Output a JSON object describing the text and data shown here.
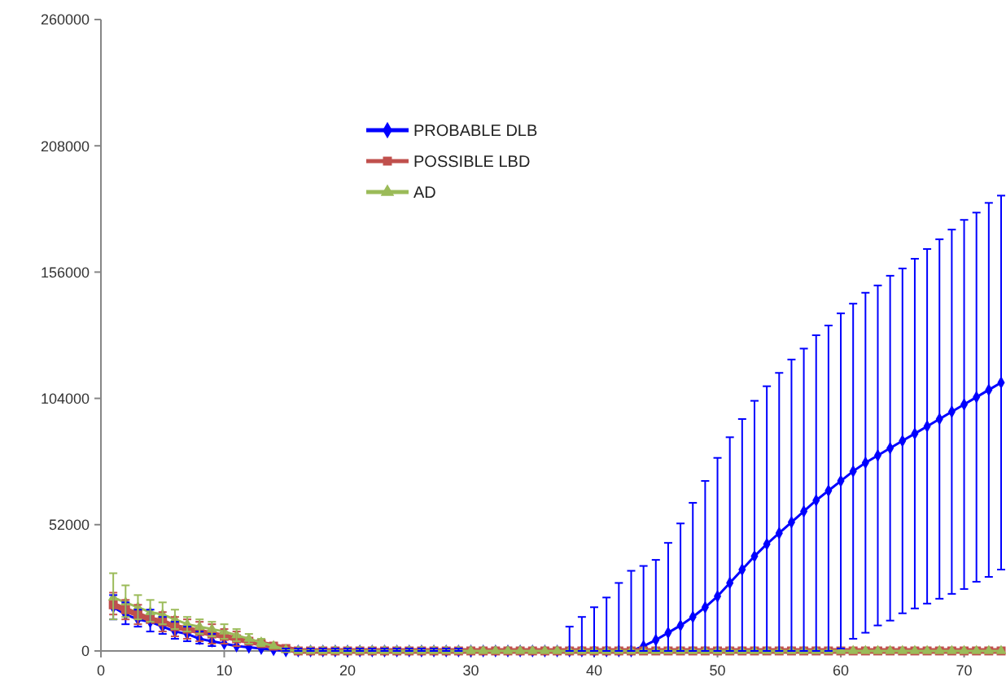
{
  "chart_data": {
    "type": "line",
    "x": [
      1,
      2,
      3,
      4,
      5,
      6,
      7,
      8,
      9,
      10,
      11,
      12,
      13,
      14,
      15,
      16,
      17,
      18,
      19,
      20,
      21,
      22,
      23,
      24,
      25,
      26,
      27,
      28,
      29,
      30,
      31,
      32,
      33,
      34,
      35,
      36,
      37,
      38,
      39,
      40,
      41,
      42,
      43,
      44,
      45,
      46,
      47,
      48,
      49,
      50,
      51,
      52,
      53,
      54,
      55,
      56,
      57,
      58,
      59,
      60,
      61,
      62,
      63,
      64,
      65,
      66,
      67,
      68,
      69,
      70,
      71,
      72,
      73
    ],
    "xlim": [
      0,
      73
    ],
    "xticks": [
      0,
      10,
      20,
      30,
      40,
      50,
      60,
      70
    ],
    "ylim": [
      0,
      260000
    ],
    "yticks": [
      0,
      52000,
      104000,
      156000,
      208000,
      260000
    ],
    "grid": false,
    "legend": "top left",
    "series": [
      {
        "name": "PROBABLE DLB",
        "color": "#0000ff",
        "marker": "diamond",
        "values": [
          18000,
          15000,
          13000,
          12000,
          10000,
          8000,
          7000,
          5000,
          4000,
          3000,
          2000,
          1500,
          1000,
          500,
          0,
          0,
          0,
          0,
          0,
          0,
          0,
          0,
          0,
          0,
          0,
          0,
          0,
          0,
          0,
          0,
          0,
          0,
          0,
          0,
          0,
          0,
          0,
          0,
          0,
          0,
          0,
          0,
          0,
          2000,
          4500,
          7500,
          10500,
          14000,
          18000,
          22500,
          28000,
          33500,
          39000,
          44000,
          48500,
          53000,
          57500,
          62000,
          66000,
          70000,
          74000,
          77500,
          80500,
          83500,
          86500,
          89500,
          92500,
          95500,
          98500,
          101500,
          104500,
          107500,
          110500
        ],
        "errors": [
          [
            13000,
            23000
          ],
          [
            11000,
            20000
          ],
          [
            10000,
            17000
          ],
          [
            8000,
            17000
          ],
          [
            7000,
            14000
          ],
          [
            5000,
            12000
          ],
          [
            4000,
            10000
          ],
          [
            3000,
            8000
          ],
          [
            2000,
            7000
          ],
          null,
          null,
          null,
          null,
          null,
          [
            0,
            1000
          ],
          [
            0,
            1000
          ],
          [
            0,
            1000
          ],
          [
            0,
            1000
          ],
          [
            0,
            1000
          ],
          [
            0,
            1000
          ],
          [
            0,
            1000
          ],
          [
            0,
            1000
          ],
          [
            0,
            1000
          ],
          [
            0,
            1000
          ],
          [
            0,
            1000
          ],
          [
            0,
            1000
          ],
          [
            0,
            1000
          ],
          [
            0,
            1000
          ],
          [
            0,
            1000
          ],
          null,
          null,
          null,
          null,
          null,
          null,
          null,
          null,
          [
            0,
            10000
          ],
          [
            0,
            14000
          ],
          [
            0,
            18000
          ],
          [
            0,
            22000
          ],
          [
            0,
            28000
          ],
          [
            0,
            33000
          ],
          [
            0,
            35000
          ],
          [
            0,
            37500
          ],
          [
            0,
            44500
          ],
          [
            0,
            52500
          ],
          [
            0,
            61000
          ],
          [
            0,
            70000
          ],
          [
            0,
            79500
          ],
          [
            0,
            88000
          ],
          [
            0,
            95500
          ],
          [
            0,
            103000
          ],
          [
            0,
            109000
          ],
          [
            0,
            114500
          ],
          [
            0,
            120000
          ],
          [
            0,
            124500
          ],
          [
            0,
            130000
          ],
          [
            0,
            134000
          ],
          [
            1000,
            139000
          ],
          [
            5000,
            143000
          ],
          [
            7500,
            147500
          ],
          [
            10500,
            150500
          ],
          [
            12500,
            154500
          ],
          [
            15500,
            157500
          ],
          [
            17500,
            161500
          ],
          [
            19500,
            165500
          ],
          [
            21500,
            169500
          ],
          [
            23500,
            173500
          ],
          [
            25500,
            177500
          ],
          [
            28500,
            180500
          ],
          [
            30500,
            184500
          ],
          [
            33500,
            187500
          ]
        ]
      },
      {
        "name": "POSSIBLE LBD",
        "color": "#c0504d",
        "marker": "square",
        "values": [
          19000,
          17000,
          15000,
          13000,
          12000,
          10000,
          9000,
          8000,
          7000,
          6000,
          5000,
          4000,
          3000,
          2000,
          1000,
          0,
          0,
          0,
          0,
          0,
          0,
          0,
          0,
          0,
          0,
          0,
          0,
          0,
          0,
          0,
          0,
          0,
          0,
          0,
          0,
          0,
          0,
          0,
          0,
          0,
          0,
          0,
          0,
          0,
          0,
          0,
          0,
          0,
          0,
          0,
          0,
          0,
          0,
          0,
          0,
          0,
          0,
          0,
          0,
          0,
          0,
          0,
          0,
          0,
          0,
          0,
          0,
          0,
          0,
          0,
          0,
          0,
          0
        ],
        "errors": [
          [
            15000,
            24000
          ],
          [
            13000,
            21000
          ],
          [
            11000,
            19000
          ],
          null,
          [
            8000,
            16000
          ],
          [
            6000,
            14000
          ],
          [
            5000,
            13000
          ],
          [
            4000,
            12000
          ],
          [
            3000,
            11000
          ],
          [
            3000,
            9000
          ],
          [
            2000,
            8000
          ],
          null,
          null,
          null,
          null,
          null,
          null,
          null,
          null,
          null,
          null,
          null,
          null,
          null,
          null,
          null,
          null,
          null,
          null,
          null,
          null,
          null,
          null,
          null,
          null,
          null,
          null,
          null,
          null,
          null,
          null,
          null,
          null,
          null,
          null,
          null,
          null,
          null,
          null,
          null,
          null,
          null,
          null,
          null,
          null,
          null,
          null,
          null,
          null,
          null,
          null,
          null,
          null,
          null,
          null,
          null,
          null,
          null,
          null,
          null,
          null,
          null,
          null
        ]
      },
      {
        "name": "AD",
        "color": "#9bbb59",
        "marker": "triangle",
        "values": [
          22000,
          20000,
          18000,
          16000,
          15000,
          13000,
          11000,
          10000,
          9000,
          8000,
          6500,
          5000,
          3500,
          2000,
          500,
          0,
          0,
          0,
          0,
          0,
          0,
          0,
          0,
          0,
          0,
          0,
          0,
          0,
          0,
          0,
          0,
          0,
          0,
          0,
          0,
          0,
          0,
          0,
          0,
          0,
          0,
          0,
          0,
          0,
          0,
          0,
          0,
          0,
          0,
          0,
          0,
          0,
          0,
          0,
          0,
          0,
          0,
          0,
          0,
          0,
          0,
          0,
          0,
          0,
          0,
          0,
          0,
          0,
          0,
          0,
          0,
          0,
          0
        ],
        "errors": [
          [
            13000,
            32000
          ],
          [
            14000,
            27000
          ],
          [
            13000,
            23000
          ],
          [
            12000,
            21000
          ],
          [
            11000,
            20000
          ],
          [
            9000,
            17000
          ],
          [
            8000,
            14000
          ],
          [
            7000,
            13000
          ],
          [
            6000,
            12000
          ],
          [
            5000,
            11000
          ],
          [
            4000,
            9000
          ],
          [
            3000,
            7000
          ],
          [
            2000,
            5000
          ],
          null,
          null,
          null,
          null,
          null,
          null,
          null,
          null,
          null,
          null,
          null,
          null,
          null,
          null,
          null,
          null,
          null,
          null,
          null,
          null,
          null,
          null,
          null,
          null,
          null,
          null,
          null,
          null,
          null,
          null,
          null,
          null,
          null,
          null,
          null,
          null,
          null,
          null,
          null,
          null,
          null,
          null,
          null,
          null,
          null,
          null,
          null,
          null,
          null,
          null,
          null,
          null,
          null,
          null,
          null,
          null,
          null,
          null,
          null,
          null
        ]
      }
    ]
  }
}
